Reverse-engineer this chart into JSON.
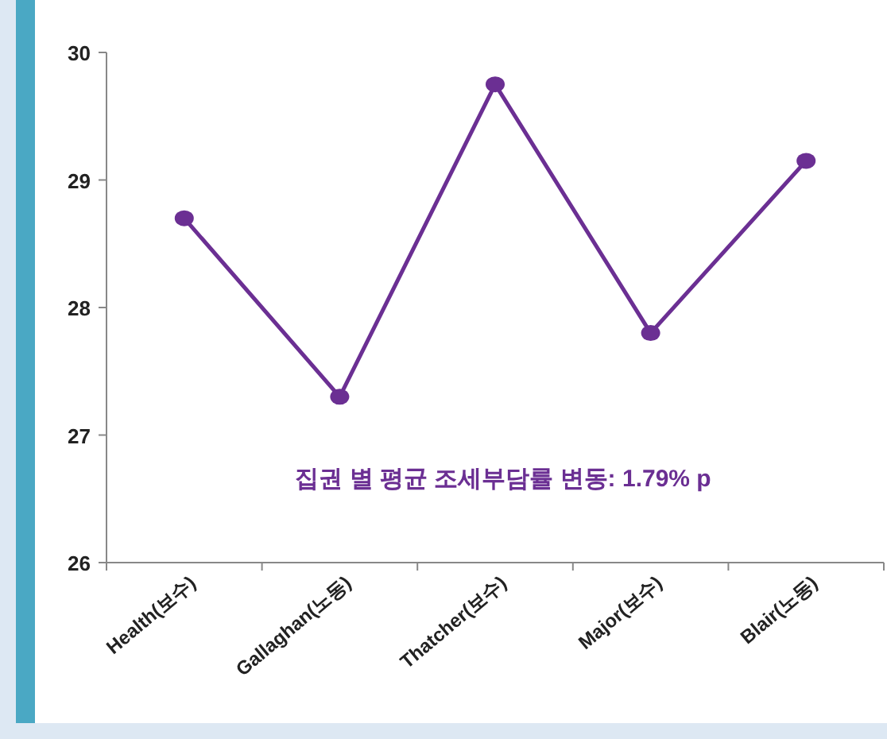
{
  "chart_data": {
    "type": "line",
    "categories": [
      "Health(보수)",
      "Gallaghan(노동)",
      "Thatcher(보수)",
      "Major(보수)",
      "Blair(노동)"
    ],
    "series": [
      {
        "color": "#6b2f93",
        "values": [
          28.7,
          27.3,
          29.75,
          27.8,
          29.15
        ]
      }
    ],
    "ylim": [
      26,
      30
    ],
    "yticks": [
      26,
      27,
      28,
      29,
      30
    ],
    "grid": false,
    "marker": "circle",
    "line_style": "solid",
    "annotations": [
      "집권 별 평균 조세부담률 변동: 1.79% p"
    ]
  }
}
